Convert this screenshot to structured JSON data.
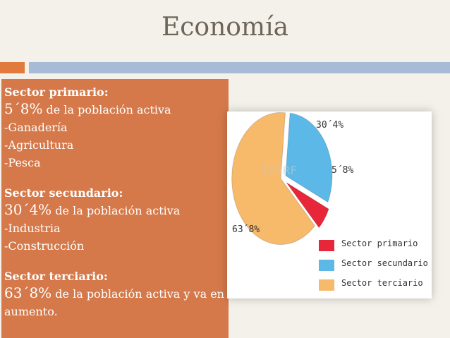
{
  "title": "Economía",
  "sectors": {
    "primario": {
      "heading": "Sector primario:",
      "pct": "5´8%",
      "pct_text": " de la población activa",
      "items": [
        "-Ganadería",
        "-Agricultura",
        "-Pesca"
      ]
    },
    "secundario": {
      "heading": "Sector secundario:",
      "pct": "30´4%",
      "pct_text": " de la población activa",
      "items": [
        "-Industria",
        "-Construcción"
      ]
    },
    "terciario": {
      "heading": "Sector terciario:",
      "pct": "63´8%",
      "pct_text": " de la población activa y va en",
      "line2": "aumento."
    }
  },
  "chart_data": {
    "type": "pie",
    "slices": [
      {
        "label": "5´8%",
        "value": 5.8,
        "color": "#e8263a"
      },
      {
        "label": "30´4%",
        "value": 30.4,
        "color": "#5cb8e6"
      },
      {
        "label": "63´8%",
        "value": 63.8,
        "color": "#f7b96a"
      }
    ],
    "legend": [
      {
        "label": "Sector primario",
        "color": "#e8263a"
      },
      {
        "label": "Sector secundario",
        "color": "#5cb8e6"
      },
      {
        "label": "Sector terciario",
        "color": "#f7b96a"
      }
    ],
    "watermark": "123RF"
  },
  "colors": {
    "orange_panel": "#d5794a",
    "accent_orange": "#e07a3d",
    "accent_blue": "#a7bbd6",
    "title_text": "#6e6457"
  }
}
